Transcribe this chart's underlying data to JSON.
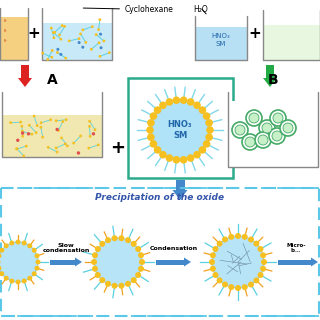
{
  "bg_color": "#ffffff",
  "cyclohexane_label": "Cyclohexane",
  "h2o_label": "H₂O",
  "hno3_sm_label": "HNO₃\nSM",
  "label_A": "A",
  "label_B": "B",
  "precipitation_title": "Precipitation of the oxide",
  "slow_condensation": "Slow\ncondensation",
  "condensation": "Condensation",
  "micro_label": "Micro-\nb...",
  "dashed_color": "#5bc8e8",
  "teal_border": "#2aaa8a",
  "red_arrow": "#dd2222",
  "green_arrow": "#22aa44",
  "blue_arrow": "#4488cc",
  "beige_liquid": "#f5d080",
  "cyan_liquid": "#c8eaf8",
  "light_cyan_liquid": "#b8e0f5",
  "head_color": "#f5c020",
  "tail_cyan": "#5ad0e0",
  "tail_orange": "#f0a020",
  "inner_blue": "#a8daf0",
  "green_circle_border": "#44aa66"
}
